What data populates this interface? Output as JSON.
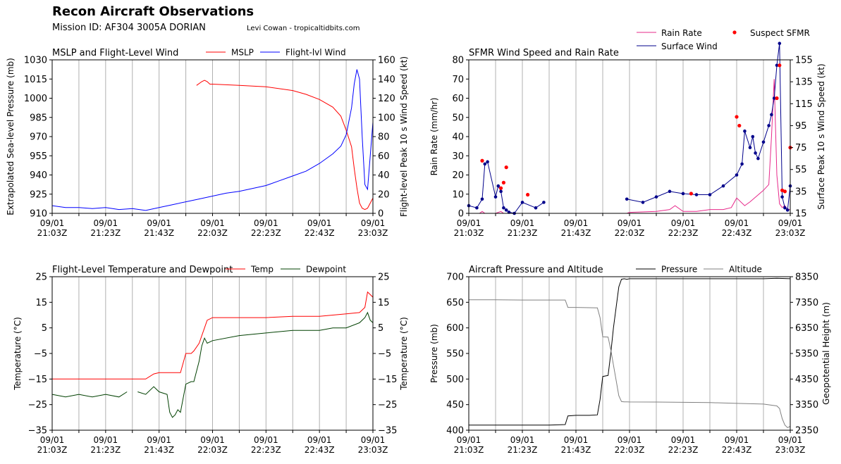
{
  "header": {
    "title": "Recon Aircraft Observations",
    "mission": "Mission ID: AF304 3005A DORIAN",
    "credit": "Levi Cowan - tropicaltidbits.com"
  },
  "time_ticks": [
    "09/01\n21:03Z",
    "09/01\n21:23Z",
    "09/01\n21:43Z",
    "09/01\n22:03Z",
    "09/01\n22:23Z",
    "09/01\n22:43Z",
    "09/01\n23:03Z"
  ],
  "chart_data": [
    {
      "id": "mslp",
      "type": "line",
      "title": "MSLP and Flight-Level Wind",
      "xlabel": "",
      "ylabel": "Extrapolated Sea-level Pressure (mb)",
      "ylabel_right": "Flight-level Peak 10 s Wind Speed (kt)",
      "x_unit": "minutes after 21:03Z",
      "xlim": [
        0,
        120
      ],
      "ylim": [
        910,
        1030
      ],
      "ylim_right": [
        0,
        160
      ],
      "yticks": [
        "910",
        "925",
        "940",
        "955",
        "970",
        "985",
        "1000",
        "1015",
        "1030"
      ],
      "yticks_right": [
        "0",
        "20",
        "40",
        "60",
        "80",
        "100",
        "120",
        "140",
        "160"
      ],
      "grid_x": true,
      "legend": [
        "MSLP",
        "Flight-lvl Wind"
      ],
      "series": [
        {
          "name": "MSLP",
          "axis": "left",
          "color": "#ff0000",
          "x": [
            54,
            56,
            57,
            58,
            59,
            60,
            70,
            80,
            90,
            95,
            100,
            105,
            108,
            110,
            112,
            113,
            114,
            115,
            116,
            117,
            118,
            119,
            120
          ],
          "y": [
            1010,
            1013,
            1014,
            1013,
            1011,
            1011,
            1010,
            1009,
            1006,
            1003,
            999,
            993,
            986,
            975,
            962,
            945,
            930,
            918,
            914,
            913,
            914,
            918,
            922
          ]
        },
        {
          "name": "Flight-lvl Wind",
          "axis": "right",
          "color": "#0000ff",
          "x": [
            0,
            5,
            10,
            15,
            20,
            25,
            30,
            35,
            40,
            45,
            50,
            55,
            60,
            65,
            70,
            75,
            80,
            85,
            90,
            95,
            100,
            105,
            108,
            110,
            112,
            113,
            114,
            115,
            116,
            117,
            118,
            119,
            120
          ],
          "y": [
            8,
            6,
            6,
            5,
            6,
            4,
            5,
            3,
            6,
            9,
            12,
            15,
            18,
            21,
            23,
            26,
            29,
            34,
            39,
            44,
            52,
            62,
            70,
            82,
            110,
            135,
            150,
            140,
            80,
            30,
            25,
            60,
            95
          ]
        }
      ]
    },
    {
      "id": "sfmr",
      "type": "line",
      "title": "SFMR Wind Speed and Rain Rate",
      "xlabel": "",
      "ylabel": "Rain Rate (mm/hr)",
      "ylabel_right": "Surface Peak 10 s Wind Speed (kt)",
      "x_unit": "minutes after 21:03Z",
      "xlim": [
        0,
        120
      ],
      "ylim": [
        0,
        80
      ],
      "ylim_right": [
        15,
        155
      ],
      "yticks": [
        "0",
        "10",
        "20",
        "30",
        "40",
        "50",
        "60",
        "70",
        "80"
      ],
      "yticks_right": [
        "15",
        "35",
        "55",
        "75",
        "95",
        "115",
        "135",
        "155"
      ],
      "grid_x": true,
      "legend": [
        "Rain Rate",
        "Surface Wind",
        "Suspect SFMR"
      ],
      "series": [
        {
          "name": "Rain Rate",
          "axis": "left",
          "color": "#e7298a",
          "x": [
            0,
            4,
            5,
            6,
            10,
            12,
            13,
            20,
            59,
            60,
            70,
            75,
            77,
            80,
            85,
            90,
            95,
            98,
            100,
            103,
            105,
            110,
            112,
            113,
            114,
            115,
            116,
            117,
            118,
            119,
            120
          ],
          "y": [
            0,
            0,
            1,
            0,
            0,
            1,
            0,
            0,
            0,
            0.5,
            1,
            2,
            4,
            1,
            1,
            2,
            2,
            3,
            8,
            4,
            6,
            12,
            15,
            40,
            70,
            20,
            5,
            3,
            4,
            2,
            2
          ],
          "segments": [
            [
              0,
              7
            ],
            [
              8,
              30
            ]
          ]
        },
        {
          "name": "Surface Wind",
          "axis": "right",
          "color": "#00008b",
          "x": [
            0,
            3,
            5,
            6,
            7,
            10,
            11,
            12,
            13,
            14,
            15,
            17,
            20,
            25,
            28,
            59,
            65,
            70,
            75,
            80,
            85,
            90,
            95,
            100,
            102,
            103,
            105,
            106,
            107,
            108,
            110,
            112,
            113,
            114,
            115,
            116,
            117,
            118,
            119,
            120
          ],
          "y": [
            22,
            20,
            28,
            60,
            62,
            30,
            40,
            35,
            20,
            18,
            16,
            15,
            25,
            20,
            25,
            28,
            25,
            30,
            35,
            33,
            32,
            32,
            40,
            50,
            60,
            90,
            75,
            85,
            70,
            65,
            80,
            95,
            105,
            120,
            150,
            170,
            30,
            20,
            18,
            40
          ],
          "segments": [
            [
              0,
              14
            ],
            [
              15,
              39
            ]
          ]
        },
        {
          "name": "Suspect SFMR",
          "axis": "right",
          "color": "#ff0000",
          "type": "scatter",
          "x": [
            5,
            12,
            13,
            14,
            22,
            83,
            100,
            101,
            115,
            116,
            117,
            118,
            120
          ],
          "y": [
            63,
            38,
            43,
            57,
            32,
            33,
            103,
            95,
            120,
            150,
            36,
            35,
            75
          ]
        }
      ]
    },
    {
      "id": "temp",
      "type": "line",
      "title": "Flight-Level Temperature and Dewpoint",
      "xlabel": "",
      "ylabel": "Temperature (°C)",
      "ylabel_right": "Temperature (°C)",
      "x_unit": "minutes after 21:03Z",
      "xlim": [
        0,
        120
      ],
      "ylim": [
        -35,
        25
      ],
      "ylim_right": [
        -35,
        25
      ],
      "yticks": [
        "−35",
        "−25",
        "−15",
        "−5",
        "5",
        "15",
        "25"
      ],
      "yticks_right": [
        "−35",
        "−25",
        "−15",
        "−5",
        "5",
        "15",
        "25"
      ],
      "grid_x": true,
      "legend": [
        "Temp",
        "Dewpoint"
      ],
      "series": [
        {
          "name": "Temp",
          "axis": "left",
          "color": "#ff0000",
          "x": [
            0,
            10,
            20,
            30,
            35,
            38,
            40,
            45,
            48,
            50,
            52,
            53,
            55,
            57,
            58,
            60,
            70,
            80,
            90,
            100,
            105,
            110,
            115,
            117,
            118,
            119,
            120
          ],
          "y": [
            -15,
            -15,
            -15,
            -15,
            -15,
            -13,
            -12.5,
            -12.5,
            -12.5,
            -5,
            -5,
            -4,
            -1,
            5,
            8,
            9,
            9,
            9,
            9.5,
            9.5,
            10,
            10.5,
            11,
            13,
            19,
            18,
            17
          ]
        },
        {
          "name": "Dewpoint",
          "axis": "left",
          "color": "#004000",
          "x": [
            0,
            5,
            10,
            15,
            20,
            25,
            28,
            32,
            35,
            38,
            40,
            43,
            44,
            45,
            46,
            47,
            48,
            50,
            52,
            53,
            55,
            56,
            57,
            58,
            60,
            70,
            80,
            90,
            100,
            105,
            110,
            115,
            117,
            118,
            119,
            120
          ],
          "y": [
            -21,
            -22,
            -21,
            -22,
            -21,
            -22,
            -20,
            -20,
            -21,
            -18,
            -20,
            -21,
            -28,
            -30,
            -29,
            -27,
            -28,
            -17,
            -16,
            -16,
            -8,
            -2,
            1,
            -1,
            0,
            2,
            3,
            4,
            4,
            5,
            5,
            7,
            9,
            11,
            8,
            7
          ],
          "segments": [
            [
              0,
              6
            ],
            [
              7,
              35
            ]
          ]
        }
      ]
    },
    {
      "id": "alt",
      "type": "line",
      "title": "Aircraft Pressure and Altitude",
      "xlabel": "",
      "ylabel": "Pressure (mb)",
      "ylabel_right": "Geopotential Height (m)",
      "x_unit": "minutes after 21:03Z",
      "xlim": [
        0,
        120
      ],
      "ylim": [
        400,
        700
      ],
      "ylim_right": [
        2350,
        8350
      ],
      "yticks": [
        "400",
        "450",
        "500",
        "550",
        "600",
        "650",
        "700"
      ],
      "yticks_right": [
        "2350",
        "3350",
        "4350",
        "5350",
        "6350",
        "7350",
        "8350"
      ],
      "grid_x": true,
      "legend": [
        "Pressure",
        "Altitude"
      ],
      "series": [
        {
          "name": "Pressure",
          "axis": "left",
          "color": "#000000",
          "x": [
            0,
            10,
            20,
            30,
            36,
            37,
            40,
            45,
            48,
            49,
            50,
            52,
            53,
            54,
            55,
            56,
            57,
            58,
            59,
            60,
            70,
            80,
            90,
            100,
            110,
            115,
            120
          ],
          "y": [
            410,
            410,
            410,
            410,
            411,
            428,
            429,
            429,
            430,
            460,
            505,
            507,
            550,
            600,
            640,
            680,
            695,
            696,
            695,
            696,
            696,
            696,
            696,
            696,
            696,
            697,
            696
          ]
        },
        {
          "name": "Altitude",
          "axis": "right",
          "color": "#808080",
          "x": [
            0,
            10,
            20,
            30,
            36,
            37,
            40,
            45,
            48,
            49,
            50,
            52,
            53,
            54,
            55,
            56,
            57,
            58,
            59,
            60,
            70,
            80,
            90,
            100,
            110,
            115,
            116,
            117,
            118,
            119,
            120
          ],
          "y": [
            7450,
            7450,
            7440,
            7440,
            7440,
            7150,
            7150,
            7140,
            7130,
            6750,
            6000,
            5990,
            5500,
            4900,
            4300,
            3700,
            3470,
            3460,
            3460,
            3455,
            3450,
            3440,
            3430,
            3400,
            3370,
            3300,
            3200,
            2800,
            2550,
            2450,
            2500
          ]
        }
      ]
    }
  ]
}
